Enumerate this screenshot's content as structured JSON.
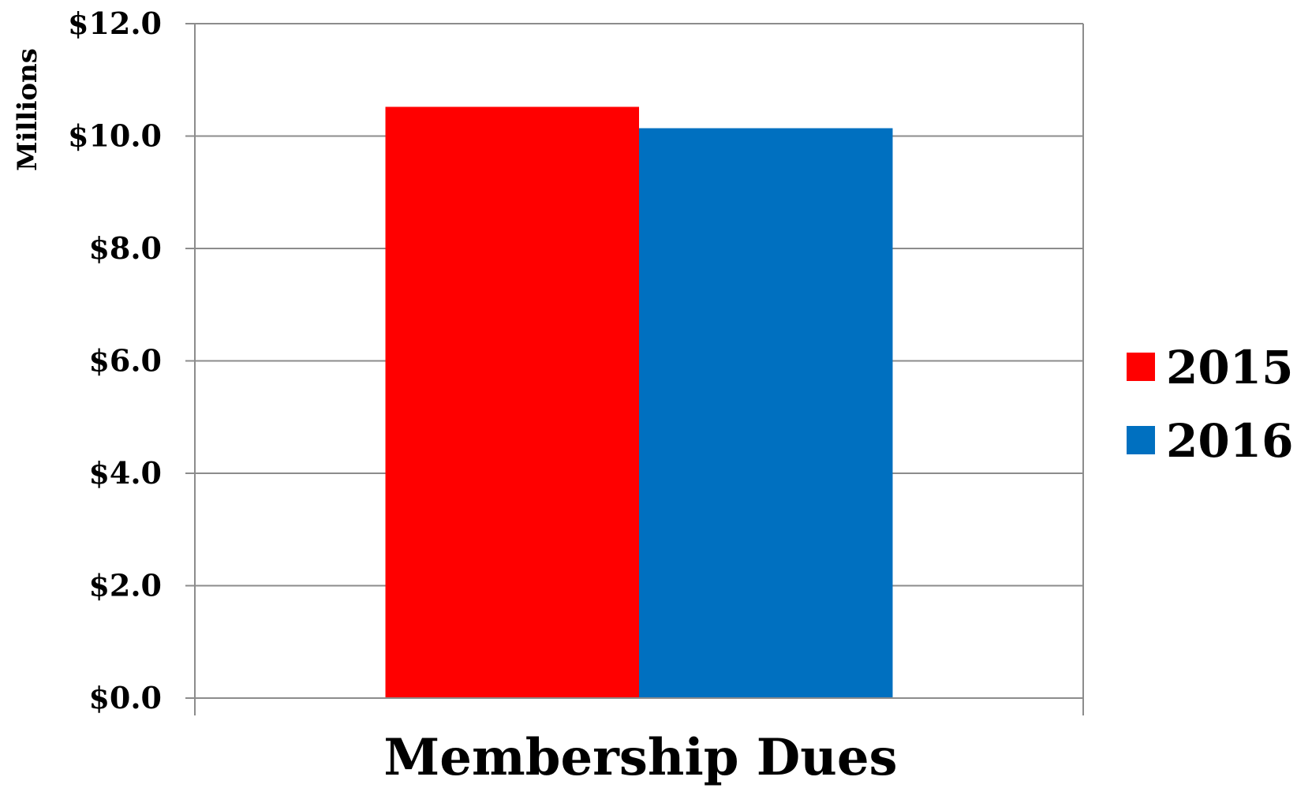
{
  "chart_data": {
    "type": "bar",
    "categories": [
      "Membership Dues"
    ],
    "series": [
      {
        "name": "2015",
        "values": [
          10.52
        ],
        "color": "#ff0000"
      },
      {
        "name": "2016",
        "values": [
          10.14
        ],
        "color": "#0070c0"
      }
    ],
    "ylabel": "Millions",
    "xlabel": "",
    "ylim": [
      0,
      12
    ],
    "yticks": [
      0,
      2,
      4,
      6,
      8,
      10,
      12
    ],
    "ytick_labels": [
      "$0.0",
      "$2.0",
      "$4.0",
      "$6.0",
      "$8.0",
      "$10.0",
      "$12.0"
    ],
    "grid": true,
    "legend_position": "right"
  }
}
